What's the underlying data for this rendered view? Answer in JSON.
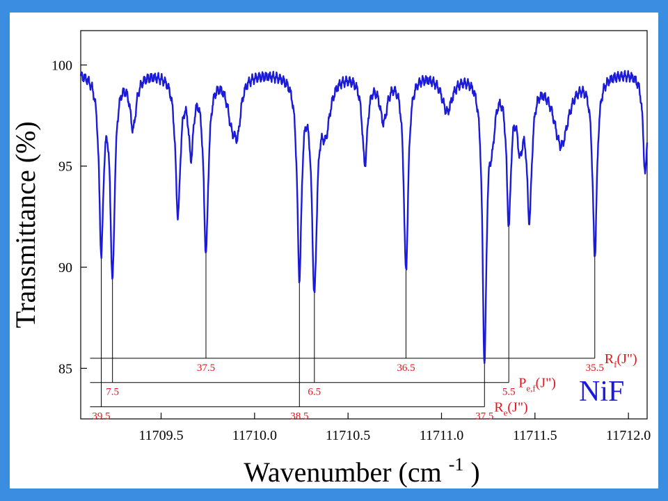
{
  "chart_data": {
    "type": "line",
    "title": "",
    "xlabel": "Wavenumber",
    "xlabel_unit_prefix": "(cm",
    "xlabel_unit_exp": "-1",
    "xlabel_unit_suffix": ")",
    "ylabel": "Transmittance (%)",
    "xlim": [
      11709.07,
      11712.1
    ],
    "ylim": [
      82.5,
      101.7
    ],
    "x_ticks": [
      11709.5,
      11710.0,
      11710.5,
      11711.0,
      11711.5,
      11712.0
    ],
    "x_tick_labels": [
      "11709.5",
      "11710.0",
      "11710.5",
      "11711.0",
      "11711.5",
      "11712.0"
    ],
    "y_ticks": [
      85,
      90,
      95,
      100
    ],
    "y_tick_labels": [
      "85",
      "90",
      "95",
      "100"
    ],
    "line_color": "#1a1ad8",
    "grid": false,
    "baseline": 99.7,
    "lines": [
      {
        "x": 11709.18,
        "depth": 8.5,
        "width": 0.014
      },
      {
        "x": 11709.24,
        "depth": 9.8,
        "width": 0.014
      },
      {
        "x": 11709.35,
        "depth": 2.6,
        "width": 0.02
      },
      {
        "x": 11709.59,
        "depth": 6.8,
        "width": 0.016
      },
      {
        "x": 11709.66,
        "depth": 3.6,
        "width": 0.016
      },
      {
        "x": 11709.74,
        "depth": 8.6,
        "width": 0.015
      },
      {
        "x": 11709.88,
        "depth": 2.2,
        "width": 0.03
      },
      {
        "x": 11709.91,
        "depth": 2.0,
        "width": 0.02
      },
      {
        "x": 11710.24,
        "depth": 9.7,
        "width": 0.014
      },
      {
        "x": 11710.32,
        "depth": 10.2,
        "width": 0.016
      },
      {
        "x": 11710.38,
        "depth": 2.5,
        "width": 0.03
      },
      {
        "x": 11710.59,
        "depth": 4.3,
        "width": 0.017
      },
      {
        "x": 11710.69,
        "depth": 2.2,
        "width": 0.025
      },
      {
        "x": 11710.81,
        "depth": 9.7,
        "width": 0.014
      },
      {
        "x": 11711.03,
        "depth": 1.8,
        "width": 0.035
      },
      {
        "x": 11711.23,
        "depth": 13.7,
        "width": 0.013
      },
      {
        "x": 11711.27,
        "depth": 2.5,
        "width": 0.02
      },
      {
        "x": 11711.36,
        "depth": 6.8,
        "width": 0.014
      },
      {
        "x": 11711.42,
        "depth": 3.0,
        "width": 0.02
      },
      {
        "x": 11711.47,
        "depth": 6.5,
        "width": 0.016
      },
      {
        "x": 11711.64,
        "depth": 3.5,
        "width": 0.05
      },
      {
        "x": 11711.82,
        "depth": 8.8,
        "width": 0.014
      },
      {
        "x": 11712.09,
        "depth": 5.0,
        "width": 0.014
      }
    ],
    "label_rows": [
      {
        "name": "R_f",
        "y": 85.5,
        "x_start": 11709.12,
        "branch_main": "R",
        "branch_sub": "f",
        "branch_tail": "(J\")",
        "assignments": [
          {
            "x": 11709.74,
            "peak_y": 90.9,
            "label": "37.5"
          },
          {
            "x": 11710.81,
            "peak_y": 90.0,
            "label": "36.5"
          },
          {
            "x": 11711.82,
            "peak_y": 90.9,
            "label": "35.5"
          }
        ]
      },
      {
        "name": "P_ef",
        "y": 84.3,
        "x_start": 11709.12,
        "branch_main": "P",
        "branch_sub": "e,f",
        "branch_tail": "(J\")",
        "assignments": [
          {
            "x": 11709.24,
            "peak_y": 89.6,
            "label": "7.5"
          },
          {
            "x": 11710.32,
            "peak_y": 89.6,
            "label": "6.5"
          },
          {
            "x": 11711.36,
            "peak_y": 92.7,
            "label": "5.5"
          }
        ]
      },
      {
        "name": "R_e",
        "y": 83.1,
        "x_start": 11709.12,
        "branch_main": "R",
        "branch_sub": "e",
        "branch_tail": "(J\")",
        "assignments": [
          {
            "x": 11709.18,
            "peak_y": 90.8,
            "label": "39.5"
          },
          {
            "x": 11710.24,
            "peak_y": 90.0,
            "label": "38.5"
          },
          {
            "x": 11711.23,
            "peak_y": 85.9,
            "label": "37.5"
          }
        ]
      }
    ],
    "annotation": "NiF",
    "annotation_color": "#1a1ad8",
    "label_color": "#e8121b"
  }
}
